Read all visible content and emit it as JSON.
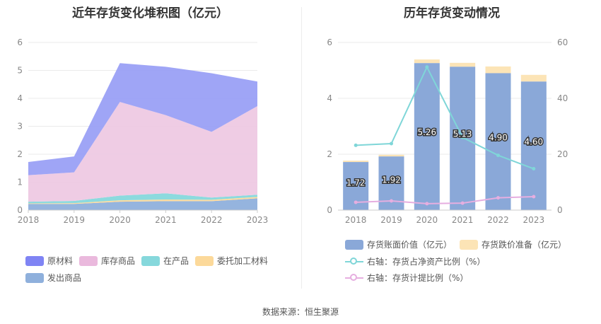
{
  "left_chart": {
    "title": "近年存货变化堆积图（亿元）",
    "legend": [
      "原材料",
      "库存商品",
      "在产品",
      "委托加工材料",
      "发出商品"
    ]
  },
  "right_chart": {
    "title": "历年存货变动情况",
    "legend": [
      "存货账面价值（亿元）",
      "存货跌价准备（亿元）",
      "右轴：存货占净资产比例（%）",
      "右轴：存货计提比例（%）"
    ]
  },
  "source": "数据来源：恒生聚源",
  "chart_data": [
    {
      "type": "area",
      "stacked": true,
      "title": "近年存货变化堆积图（亿元）",
      "categories": [
        "2018",
        "2019",
        "2020",
        "2021",
        "2022",
        "2023"
      ],
      "ylim": [
        0,
        6
      ],
      "yticks": [
        "0",
        "1",
        "2",
        "3",
        "4",
        "5",
        "6"
      ],
      "series": [
        {
          "name": "发出商品",
          "color": "#8fb0dc",
          "values": [
            0.22,
            0.22,
            0.3,
            0.32,
            0.32,
            0.42
          ]
        },
        {
          "name": "委托加工材料",
          "color": "#fcd99a",
          "values": [
            0.02,
            0.03,
            0.05,
            0.06,
            0.05,
            0.05
          ]
        },
        {
          "name": "在产品",
          "color": "#86d8dc",
          "values": [
            0.06,
            0.08,
            0.17,
            0.22,
            0.08,
            0.08
          ]
        },
        {
          "name": "库存商品",
          "color": "#eec9e3",
          "values": [
            0.95,
            1.02,
            3.35,
            2.8,
            2.35,
            3.17
          ]
        },
        {
          "name": "原材料",
          "color": "#9aa0f6",
          "values": [
            0.47,
            0.57,
            1.39,
            1.73,
            2.1,
            0.88
          ]
        }
      ],
      "legend_position": "bottom"
    },
    {
      "type": "bar",
      "title": "历年存货变动情况",
      "categories": [
        "2018",
        "2019",
        "2020",
        "2021",
        "2022",
        "2023"
      ],
      "ylim": [
        0,
        6
      ],
      "yticks": [
        "0",
        "2",
        "4",
        "6"
      ],
      "y2lim": [
        0,
        60
      ],
      "y2ticks": [
        "0",
        "20",
        "40",
        "60"
      ],
      "bars": [
        {
          "name": "存货账面价值（亿元）",
          "color": "#8aa8d8",
          "values": [
            1.72,
            1.92,
            5.26,
            5.13,
            4.9,
            4.6
          ],
          "labels": [
            "1.72",
            "1.92",
            "5.26",
            "5.13",
            "4.90",
            "4.60"
          ]
        },
        {
          "name": "存货跌价准备（亿元）",
          "color": "#fce4b6",
          "values": [
            0.05,
            0.06,
            0.13,
            0.14,
            0.24,
            0.24
          ]
        }
      ],
      "lines": [
        {
          "name": "右轴：存货占净资产比例（%）",
          "axis": "right",
          "color": "#7fd6d8",
          "values": [
            23.2,
            23.8,
            51.2,
            26.0,
            19.6,
            14.8
          ]
        },
        {
          "name": "右轴：存货计提比例（%）",
          "axis": "right",
          "color": "#e6aee0",
          "values": [
            2.8,
            3.3,
            2.3,
            2.5,
            4.4,
            4.8
          ]
        }
      ],
      "legend_position": "bottom"
    }
  ]
}
